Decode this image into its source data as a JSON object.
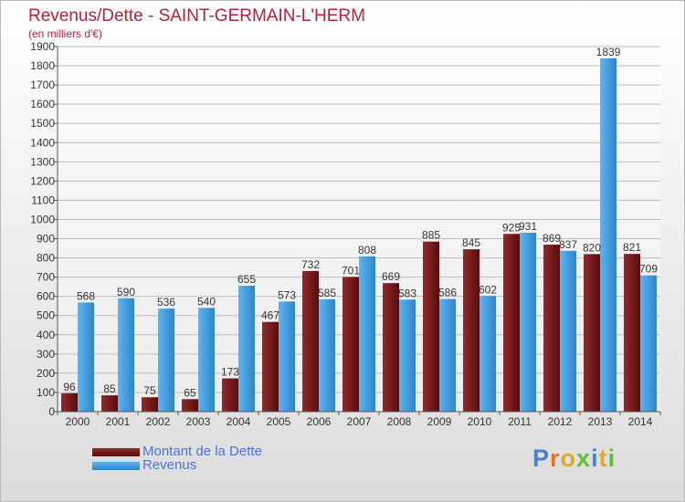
{
  "title": "Revenus/Dette - SAINT-GERMAIN-L'HERM",
  "subtitle": "(en milliers d'€)",
  "logo": "Proxiti",
  "colors": {
    "title": "#b0233b",
    "dette_dark": "#5b0b0e",
    "dette_light": "#8e2c2c",
    "revenus_dark": "#2e85c9",
    "revenus_light": "#5eb4ef",
    "legend_text": "#4a74d8"
  },
  "chart_data": {
    "type": "bar",
    "categories": [
      "2000",
      "2001",
      "2002",
      "2003",
      "2004",
      "2005",
      "2006",
      "2007",
      "2008",
      "2009",
      "2010",
      "2011",
      "2012",
      "2013",
      "2014"
    ],
    "series": [
      {
        "name": "Montant de la Dette",
        "values": [
          96,
          85,
          75,
          65,
          173,
          467,
          732,
          701,
          669,
          885,
          845,
          925,
          869,
          820,
          821
        ]
      },
      {
        "name": "Revenus",
        "values": [
          568,
          590,
          536,
          540,
          655,
          573,
          585,
          808,
          583,
          586,
          602,
          931,
          837,
          1839,
          709
        ]
      }
    ],
    "ylim": [
      0,
      1900
    ],
    "yticks": [
      0,
      100,
      200,
      300,
      400,
      500,
      600,
      700,
      800,
      900,
      1000,
      1100,
      1200,
      1300,
      1400,
      1500,
      1600,
      1700,
      1800,
      1900
    ],
    "grid": true,
    "legend": "bottom-left"
  }
}
